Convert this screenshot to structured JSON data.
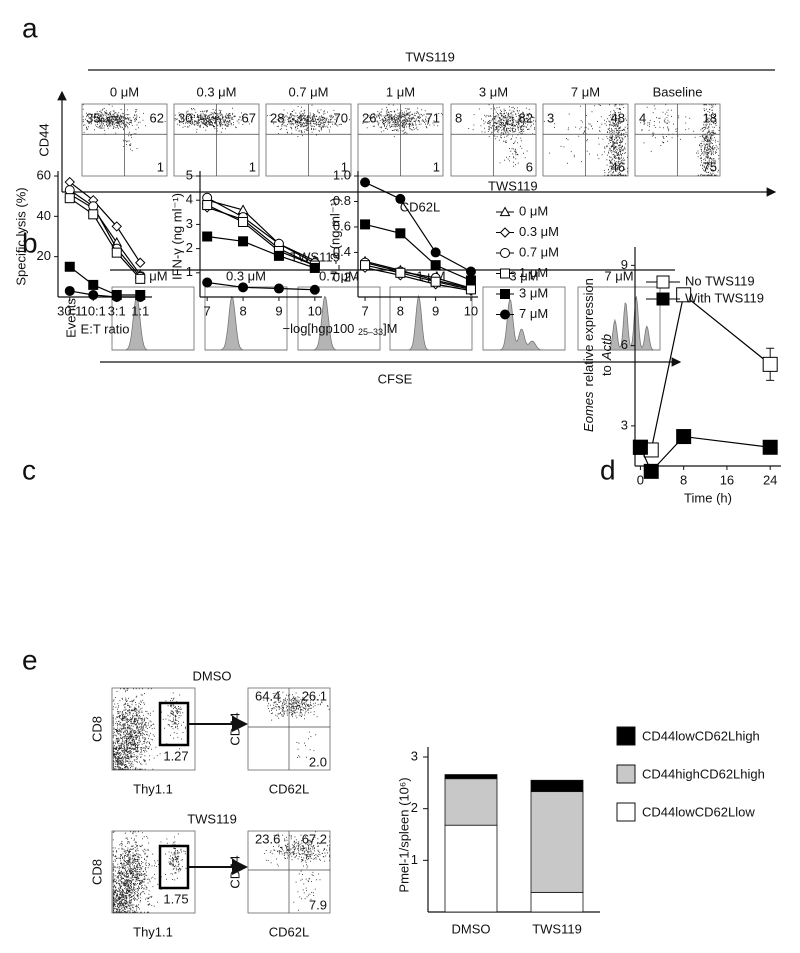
{
  "figure": {
    "panel_labels": [
      "a",
      "b",
      "c",
      "d",
      "e"
    ],
    "panel_a": {
      "title": "TWS119",
      "ylabel": "CD44",
      "xlabel": "CD62L",
      "plots": [
        {
          "title": "0 μM",
          "upper_left": "35",
          "upper_right": "62",
          "lower_right": "1"
        },
        {
          "title": "0.3 μM",
          "upper_left": "30",
          "upper_right": "67",
          "lower_right": "1"
        },
        {
          "title": "0.7 μM",
          "upper_left": "28",
          "upper_right": "70",
          "lower_right": "1"
        },
        {
          "title": "1 μM",
          "upper_left": "26",
          "upper_right": "71",
          "lower_right": "1"
        },
        {
          "title": "3 μM",
          "upper_left": "8",
          "upper_right": "82",
          "lower_right": "6"
        },
        {
          "title": "7 μM",
          "upper_left": "3",
          "upper_right": "48",
          "lower_right": "46"
        },
        {
          "title": "Baseline",
          "upper_left": "4",
          "upper_right": "18",
          "lower_right": "75"
        }
      ]
    },
    "panel_b": {
      "title": "TWS119",
      "ylabel": "Events",
      "xlabel": "CFSE",
      "plots": [
        "0 μM",
        "0.3 μM",
        "0.7 μM",
        "1 μM",
        "3 μM",
        "7 μM"
      ]
    },
    "panel_c": {
      "legend_title": "TWS119",
      "xlabel": "−log[hgp100 ",
      "xlabel_sub": "25–33",
      "xlabel_end": "]M"
    },
    "panel_e": {
      "gate_ylabel": "CD8",
      "gate_xlabel": "Thy1.1",
      "ylabel": "CD44",
      "xlabel": "CD62L",
      "groups": [
        {
          "title": "DMSO",
          "gate": "1.27",
          "upper_left": "64.4",
          "upper_right": "26.1",
          "lower_right": "2.0"
        },
        {
          "title": "TWS119",
          "gate": "1.75",
          "upper_left": "23.6",
          "upper_right": "67.2",
          "lower_right": "7.9"
        }
      ]
    }
  },
  "chart_data": [
    {
      "type": "line",
      "ylabel": "Specific lysis (%)",
      "xlabel": "E:T ratio",
      "categories": [
        "30:1",
        "10:1",
        "3:1",
        "1:1"
      ],
      "ylim": [
        0,
        60
      ],
      "yticks": [
        20,
        40,
        60
      ],
      "series": [
        {
          "name": "0 μM",
          "marker": "triangle",
          "filled": false,
          "color": "#000000",
          "values": [
            51,
            44,
            27,
            11
          ]
        },
        {
          "name": "0.3 μM",
          "marker": "diamond",
          "filled": false,
          "color": "#000000",
          "values": [
            57,
            48,
            35,
            17
          ]
        },
        {
          "name": "0.7 μM",
          "marker": "circle",
          "filled": false,
          "color": "#000000",
          "values": [
            53,
            45,
            24,
            10
          ]
        },
        {
          "name": "1 μM",
          "marker": "square",
          "filled": false,
          "color": "#000000",
          "values": [
            49,
            41,
            22,
            9
          ]
        },
        {
          "name": "3 μM",
          "marker": "square",
          "filled": true,
          "color": "#000000",
          "values": [
            15,
            6,
            1,
            1
          ]
        },
        {
          "name": "7 μM",
          "marker": "circle",
          "filled": true,
          "color": "#000000",
          "values": [
            3,
            1,
            0,
            0
          ]
        }
      ]
    },
    {
      "type": "line",
      "ylabel": "IFN-γ (ng ml⁻¹)",
      "x": [
        7,
        8,
        9,
        10
      ],
      "xlim": [
        6.8,
        10.2
      ],
      "xticks": [
        7,
        8,
        9,
        10
      ],
      "ylim": [
        0,
        5
      ],
      "yticks": [
        1,
        2,
        3,
        4,
        5
      ],
      "series": [
        {
          "marker": "triangle",
          "filled": false,
          "color": "#000000",
          "values": [
            4.0,
            3.6,
            2.2,
            1.5
          ]
        },
        {
          "marker": "diamond",
          "filled": false,
          "color": "#000000",
          "values": [
            3.7,
            3.2,
            2.0,
            1.3
          ]
        },
        {
          "marker": "circle",
          "filled": false,
          "color": "#000000",
          "values": [
            4.1,
            3.3,
            2.2,
            1.4
          ]
        },
        {
          "marker": "square",
          "filled": false,
          "color": "#000000",
          "values": [
            3.8,
            3.1,
            1.9,
            1.3
          ]
        },
        {
          "marker": "square",
          "filled": true,
          "color": "#000000",
          "values": [
            2.5,
            2.3,
            1.7,
            1.2
          ]
        },
        {
          "marker": "circle",
          "filled": true,
          "color": "#000000",
          "values": [
            0.6,
            0.4,
            0.35,
            0.3
          ]
        }
      ]
    },
    {
      "type": "line",
      "ylabel": "IL-2 (ng ml⁻¹)",
      "x": [
        7,
        8,
        9,
        10
      ],
      "xlim": [
        6.8,
        10.2
      ],
      "xticks": [
        7,
        8,
        9,
        10
      ],
      "ylim": [
        0.05,
        1.0
      ],
      "yticks": [
        0.2,
        0.4,
        0.6,
        0.8,
        {
          "value": 1,
          "label": "1.0"
        }
      ],
      "series": [
        {
          "marker": "triangle",
          "filled": false,
          "color": "#000000",
          "values": [
            0.33,
            0.26,
            0.18,
            0.12
          ]
        },
        {
          "marker": "diamond",
          "filled": false,
          "color": "#000000",
          "values": [
            0.28,
            0.22,
            0.15,
            0.1
          ]
        },
        {
          "marker": "circle",
          "filled": false,
          "color": "#000000",
          "values": [
            0.32,
            0.25,
            0.2,
            0.12
          ]
        },
        {
          "marker": "square",
          "filled": false,
          "color": "#000000",
          "values": [
            0.3,
            0.24,
            0.17,
            0.11
          ]
        },
        {
          "marker": "square",
          "filled": true,
          "color": "#000000",
          "values": [
            0.62,
            0.55,
            0.3,
            0.18
          ]
        },
        {
          "marker": "circle",
          "filled": true,
          "color": "#000000",
          "values": [
            0.95,
            0.82,
            0.4,
            0.25
          ]
        }
      ]
    },
    {
      "type": "line",
      "ylabel": [
        "Eomes",
        "relative expression",
        "to",
        "Actb"
      ],
      "xlabel": "Time (h)",
      "x": [
        0,
        2,
        8,
        24
      ],
      "xlim": [
        -1,
        26
      ],
      "xticks": [
        0,
        8,
        16,
        24
      ],
      "ylim": [
        1.5,
        9.5
      ],
      "yticks": [
        3,
        6,
        9
      ],
      "series": [
        {
          "name": "No TWS119",
          "marker": "square",
          "filled": false,
          "color": "#000000",
          "values": [
            2.2,
            2.1,
            7.9,
            5.3
          ],
          "errors": [
            null,
            null,
            null,
            0.6
          ]
        },
        {
          "name": "With TWS119",
          "marker": "square",
          "filled": true,
          "color": "#000000",
          "values": [
            2.2,
            1.3,
            2.6,
            2.2
          ]
        }
      ]
    },
    {
      "type": "stacked_bar",
      "ylabel": "Pmel-1/spleen (10⁶)",
      "categories": [
        "DMSO",
        "TWS119"
      ],
      "ylim": [
        0,
        3
      ],
      "yticks": [
        1,
        2,
        3
      ],
      "series": [
        {
          "name": "CD44lowCD62Lhigh",
          "color": "#000000",
          "values": [
            0.08,
            0.22
          ]
        },
        {
          "name": "CD44highCD62Lhigh",
          "color": "#c8c8c8",
          "values": [
            0.9,
            1.95
          ]
        },
        {
          "name": "CD44lowCD62Llow",
          "color": "#ffffff",
          "values": [
            1.68,
            0.38
          ]
        }
      ]
    }
  ]
}
